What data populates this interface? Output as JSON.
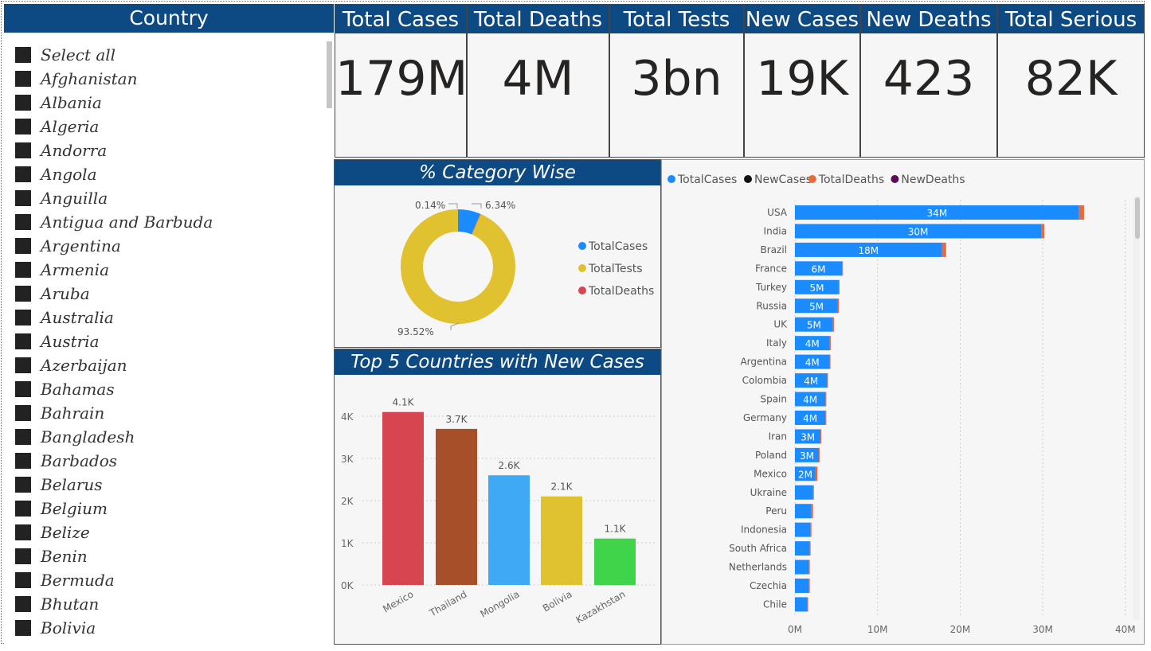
{
  "slicer": {
    "title": "Country",
    "items": [
      "Select all",
      "Afghanistan",
      "Albania",
      "Algeria",
      "Andorra",
      "Angola",
      "Anguilla",
      "Antigua and Barbuda",
      "Argentina",
      "Armenia",
      "Aruba",
      "Australia",
      "Austria",
      "Azerbaijan",
      "Bahamas",
      "Bahrain",
      "Bangladesh",
      "Barbados",
      "Belarus",
      "Belgium",
      "Belize",
      "Benin",
      "Bermuda",
      "Bhutan",
      "Bolivia"
    ]
  },
  "kpis": [
    {
      "title": "Total Cases",
      "value": "179M"
    },
    {
      "title": "Total Deaths",
      "value": "4M"
    },
    {
      "title": "Total Tests",
      "value": "3bn"
    },
    {
      "title": "New Cases",
      "value": "19K"
    },
    {
      "title": "New Deaths",
      "value": "423"
    },
    {
      "title": "Total Serious",
      "value": "82K"
    }
  ],
  "colors": {
    "header_bg": "#0d4a84",
    "total_cases": "#1a8cff",
    "total_tests": "#e0c12f",
    "total_deaths": "#d64550",
    "new_cases": "#111111",
    "total_deaths_bar": "#e8693c",
    "new_deaths": "#5c0a5c"
  },
  "donut": {
    "title": "% Category Wise",
    "legend": [
      "TotalCases",
      "TotalTests",
      "TotalDeaths"
    ],
    "labels": {
      "cases": "6.34%",
      "tests": "93.52%",
      "deaths": "0.14%"
    }
  },
  "top5": {
    "title": "Top 5 Countries with New Cases",
    "yticks": [
      "4K",
      "3K",
      "2K",
      "1K",
      "0K"
    ]
  },
  "bar_chart": {
    "legend": [
      "TotalCases",
      "NewCases",
      "TotalDeaths",
      "NewDeaths"
    ],
    "xticks": [
      "0M",
      "10M",
      "20M",
      "30M",
      "40M"
    ]
  },
  "chart_data": [
    {
      "type": "pie",
      "title": "% Category Wise",
      "categories": [
        "TotalCases",
        "TotalTests",
        "TotalDeaths"
      ],
      "values": [
        6.34,
        93.52,
        0.14
      ],
      "colors": [
        "#1a8cff",
        "#e0c12f",
        "#d64550"
      ]
    },
    {
      "type": "bar",
      "title": "Top 5 Countries with New Cases",
      "categories": [
        "Mexico",
        "Thailand",
        "Mongolia",
        "Bolivia",
        "Kazakhstan"
      ],
      "values": [
        4100,
        3700,
        2600,
        2100,
        1100
      ],
      "value_labels": [
        "4.1K",
        "3.7K",
        "2.6K",
        "2.1K",
        "1.1K"
      ],
      "colors": [
        "#d64550",
        "#a64f28",
        "#3fa9f5",
        "#e0c12f",
        "#3fd44a"
      ],
      "ylim": [
        0,
        4500
      ]
    },
    {
      "type": "bar",
      "orientation": "horizontal",
      "stacked": true,
      "categories": [
        "USA",
        "India",
        "Brazil",
        "France",
        "Turkey",
        "Russia",
        "UK",
        "Italy",
        "Argentina",
        "Colombia",
        "Spain",
        "Germany",
        "Iran",
        "Poland",
        "Mexico",
        "Ukraine",
        "Peru",
        "Indonesia",
        "South Africa",
        "Netherlands",
        "Czechia",
        "Chile"
      ],
      "series": [
        {
          "name": "TotalCases",
          "values": [
            34.4,
            29.8,
            17.8,
            5.7,
            5.3,
            5.2,
            4.6,
            4.2,
            4.2,
            3.9,
            3.7,
            3.7,
            3.1,
            2.9,
            2.5,
            2.2,
            2.0,
            1.9,
            1.8,
            1.7,
            1.7,
            1.5
          ],
          "labels": [
            "34M",
            "30M",
            "18M",
            "6M",
            "5M",
            "5M",
            "5M",
            "4M",
            "4M",
            "4M",
            "4M",
            "4M",
            "3M",
            "3M",
            "2M",
            "",
            "",
            "",
            "",
            "",
            "",
            ""
          ]
        },
        {
          "name": "TotalDeaths",
          "values": [
            0.6,
            0.38,
            0.5,
            0.11,
            0.05,
            0.12,
            0.13,
            0.13,
            0.09,
            0.1,
            0.08,
            0.09,
            0.08,
            0.08,
            0.23,
            0.05,
            0.19,
            0.05,
            0.06,
            0.02,
            0.03,
            0.03
          ]
        }
      ],
      "xlim": [
        0,
        40
      ],
      "xunit": "M"
    }
  ]
}
